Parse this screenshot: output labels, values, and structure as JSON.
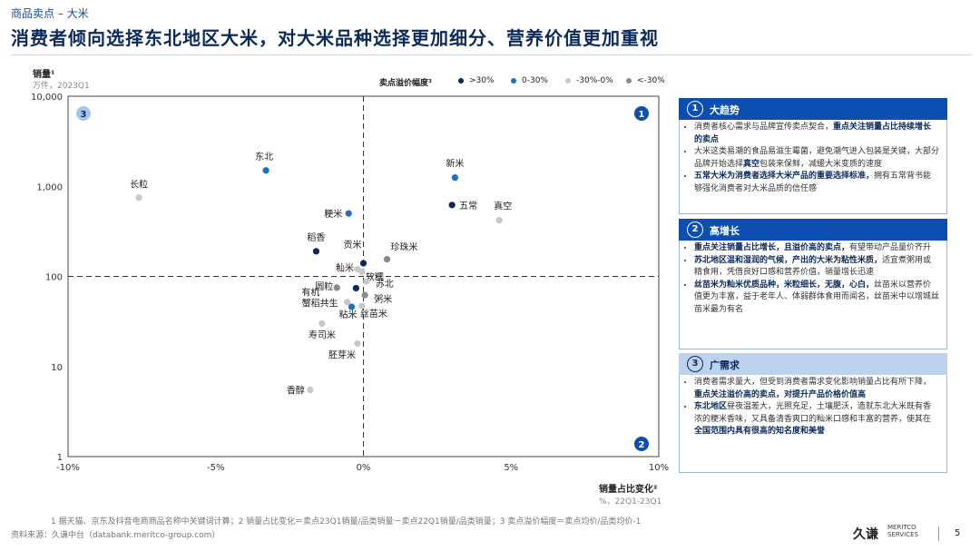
{
  "breadcrumb": "商品卖点 – 大米",
  "title": "消费者倾向选择东北地区大米，对大米品种选择更加细分、营养价值更加重视",
  "colors": {
    "gt30": "#0b2a5b",
    "b0_30": "#1f6fbd",
    "bn30_0": "#c8c8c8",
    "ltn30": "#8a8a8a",
    "accent": "#0d4fb0"
  },
  "chart_data": {
    "type": "scatter",
    "ylabel": "销量¹",
    "ylabel_sub": "万件，2023Q1",
    "xlabel": "销量占比变化²",
    "xlabel_sub": "%，22Q1-23Q1",
    "legend_title": "卖点溢价幅度³",
    "legend": [
      {
        "key": "gt30",
        "label": ">30%"
      },
      {
        "key": "b0_30",
        "label": "0-30%"
      },
      {
        "key": "bn30_0",
        "label": "-30%-0%"
      },
      {
        "key": "ltn30",
        "label": "<-30%"
      }
    ],
    "x_ticks": [
      "-10%",
      "-5%",
      "0%",
      "5%",
      "10%"
    ],
    "y_ticks": [
      "10,000",
      "1,000",
      "100",
      "10",
      "1"
    ],
    "xlim": [
      -10,
      10
    ],
    "ylim_log10": [
      0,
      4
    ],
    "y_scale": "log",
    "quadrants": [
      "1",
      "2",
      "3"
    ],
    "points": [
      {
        "name": "东北",
        "x": -3.3,
        "y": 1500,
        "cat": "b0_30"
      },
      {
        "name": "长粒",
        "x": -7.6,
        "y": 750,
        "cat": "bn30_0"
      },
      {
        "name": "新米",
        "x": 3.1,
        "y": 1250,
        "cat": "b0_30"
      },
      {
        "name": "五常",
        "x": 3.0,
        "y": 620,
        "cat": "gt30"
      },
      {
        "name": "真空",
        "x": 4.6,
        "y": 420,
        "cat": "bn30_0"
      },
      {
        "name": "粳米",
        "x": -0.5,
        "y": 500,
        "cat": "b0_30"
      },
      {
        "name": "稻香",
        "x": -1.6,
        "y": 190,
        "cat": "gt30"
      },
      {
        "name": "贡米",
        "x": 0.0,
        "y": 140,
        "cat": "gt30"
      },
      {
        "name": "珍珠米",
        "x": 0.8,
        "y": 155,
        "cat": "ltn30"
      },
      {
        "name": "籼米",
        "x": -0.2,
        "y": 120,
        "cat": "bn30_0"
      },
      {
        "name": "软糯",
        "x": -0.05,
        "y": 112,
        "cat": "bn30_0"
      },
      {
        "name": "苏北",
        "x": 0.1,
        "y": 88,
        "cat": "bn30_0"
      },
      {
        "name": "圆粒",
        "x": -0.9,
        "y": 75,
        "cat": "ltn30"
      },
      {
        "name": "有机",
        "x": -0.25,
        "y": 74,
        "cat": "gt30"
      },
      {
        "name": "粥米",
        "x": 0.05,
        "y": 62,
        "cat": "ltn30"
      },
      {
        "name": "蟹稻共生",
        "x": -0.55,
        "y": 52,
        "cat": "bn30_0"
      },
      {
        "name": "粘米",
        "x": -0.4,
        "y": 46,
        "cat": "b0_30"
      },
      {
        "name": "丝苗米",
        "x": -0.05,
        "y": 47,
        "cat": "bn30_0"
      },
      {
        "name": "寿司米",
        "x": -1.4,
        "y": 30,
        "cat": "bn30_0"
      },
      {
        "name": "胚芽米",
        "x": -0.2,
        "y": 18,
        "cat": "bn30_0"
      },
      {
        "name": "香醇",
        "x": -1.8,
        "y": 5.5,
        "cat": "bn30_0"
      }
    ]
  },
  "panels": [
    {
      "num": "1",
      "title": "大趋势",
      "items": [
        [
          {
            "t": "消费者核心需求与品牌宣传卖点契合，",
            "b": false
          },
          {
            "t": "重点关注销量占比持续增长的卖点",
            "b": true
          }
        ],
        [
          {
            "t": "大米这类易潮的食品易滋生霉菌，避免潮气进入包装是关键，大部分品牌开始选择",
            "b": false
          },
          {
            "t": "真空",
            "b": true
          },
          {
            "t": "包装来保鲜，减缓大米变质的速度",
            "b": false
          }
        ],
        [
          {
            "t": "五常大米为消费者选择大米产品的重要选择标准，",
            "b": true
          },
          {
            "t": "拥有五常背书能够强化消费者对大米品质的信任感",
            "b": false
          }
        ]
      ]
    },
    {
      "num": "2",
      "title": "高增长",
      "items": [
        [
          {
            "t": "重点关注销量占比增长，且溢价高的卖点，",
            "b": true
          },
          {
            "t": "有望带动产品量价齐升",
            "b": false
          }
        ],
        [
          {
            "t": "苏北地区温和湿润的气候，产出的大米为粘性米质，",
            "b": true
          },
          {
            "t": "适宜煮粥用或精食用，凭借良好口感和营养价值，销量增长迅速",
            "b": false
          }
        ],
        [
          {
            "t": "丝苗米为籼米优质品种，米粒细长，无腹，心白，",
            "b": true
          },
          {
            "t": "丝苗米以营养价值更为丰富，益于老年人、体弱群体食用而闻名，丝苗米中以增城丝苗米最为有名",
            "b": false
          }
        ]
      ]
    },
    {
      "num": "3",
      "title": "广需求",
      "items": [
        [
          {
            "t": "消费者需求量大，但受到消费者需求变化影响销量占比有所下降，",
            "b": false
          },
          {
            "t": "重点关注溢价高的卖点，对提升产品价格价值高",
            "b": true
          }
        ],
        [
          {
            "t": "东北地区",
            "b": true
          },
          {
            "t": "昼夜温差大，光照充足，土壤肥沃，造就东北大米既有香浓的粳米香味，又具备清香爽口的籼米口感和丰富的营养，使其在",
            "b": false
          },
          {
            "t": "全国范围内具有很高的知名度和美誉",
            "b": true
          }
        ]
      ]
    }
  ],
  "footnote": "1 据天猫、京东及抖音电商商品名称中关键词计算；2 销量占比变化＝卖点23Q1销量/品类销量－卖点22Q1销量/品类销量；3 卖点溢价幅度＝卖点均价/品类均价-1",
  "source": "资料来源：久谦中台（databank.meritco-group.com）",
  "logo": {
    "mark": "久谦",
    "line1": "MERITCO",
    "line2": "SERVICES"
  },
  "page_number": "5"
}
